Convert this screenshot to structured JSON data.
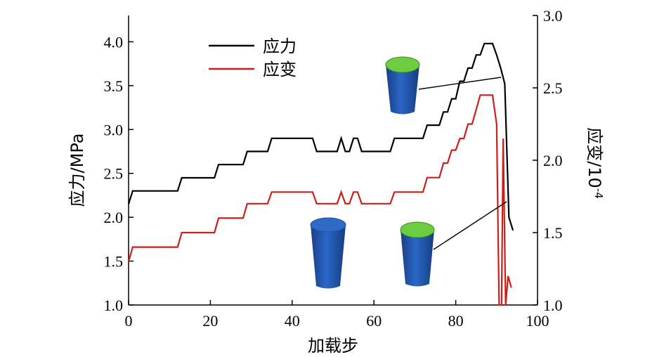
{
  "chart_data": {
    "type": "line",
    "xlabel": "加载步",
    "ylabel_left": "应力/MPa",
    "ylabel_right_base": "应变/10",
    "ylabel_right_exp": "-4",
    "xlim": [
      0,
      100
    ],
    "ylim_left": [
      1.0,
      4.3
    ],
    "ylim_right": [
      1.0,
      3.0
    ],
    "x_ticks": [
      "0",
      "20",
      "40",
      "60",
      "80",
      "100"
    ],
    "y_left_ticks": [
      "1.0",
      "1.5",
      "2.0",
      "2.5",
      "3.0",
      "3.5",
      "4.0"
    ],
    "y_right_ticks": [
      "1.0",
      "1.5",
      "2.0",
      "2.5",
      "3.0"
    ],
    "grid": false,
    "legend": "top-center",
    "series": [
      {
        "name": "应力",
        "axis": "left",
        "color": "#000000",
        "points": [
          [
            0,
            2.15
          ],
          [
            1,
            2.3
          ],
          [
            12,
            2.3
          ],
          [
            13,
            2.45
          ],
          [
            21,
            2.45
          ],
          [
            22,
            2.6
          ],
          [
            28,
            2.6
          ],
          [
            29,
            2.75
          ],
          [
            34,
            2.75
          ],
          [
            35,
            2.9
          ],
          [
            45,
            2.9
          ],
          [
            46,
            2.75
          ],
          [
            51,
            2.75
          ],
          [
            52,
            2.9
          ],
          [
            53,
            2.75
          ],
          [
            54,
            2.75
          ],
          [
            55,
            2.9
          ],
          [
            56,
            2.9
          ],
          [
            57,
            2.75
          ],
          [
            64,
            2.75
          ],
          [
            65,
            2.9
          ],
          [
            72,
            2.9
          ],
          [
            73,
            3.05
          ],
          [
            76,
            3.05
          ],
          [
            77,
            3.2
          ],
          [
            78,
            3.2
          ],
          [
            79,
            3.35
          ],
          [
            80,
            3.35
          ],
          [
            81,
            3.55
          ],
          [
            82,
            3.55
          ],
          [
            83,
            3.7
          ],
          [
            84,
            3.7
          ],
          [
            85,
            3.85
          ],
          [
            86,
            3.85
          ],
          [
            87,
            3.98
          ],
          [
            89,
            3.98
          ],
          [
            90,
            3.85
          ],
          [
            91,
            3.7
          ],
          [
            92,
            3.52
          ],
          [
            93,
            2.0
          ],
          [
            94,
            1.85
          ]
        ]
      },
      {
        "name": "应变",
        "axis": "right",
        "color": "#cc1f1a",
        "points": [
          [
            0,
            1.3
          ],
          [
            1,
            1.4
          ],
          [
            12,
            1.4
          ],
          [
            13,
            1.5
          ],
          [
            21,
            1.5
          ],
          [
            22,
            1.6
          ],
          [
            28,
            1.6
          ],
          [
            29,
            1.7
          ],
          [
            34,
            1.7
          ],
          [
            35,
            1.78
          ],
          [
            45,
            1.78
          ],
          [
            46,
            1.7
          ],
          [
            51,
            1.7
          ],
          [
            52,
            1.78
          ],
          [
            53,
            1.7
          ],
          [
            54,
            1.7
          ],
          [
            55,
            1.78
          ],
          [
            56,
            1.78
          ],
          [
            57,
            1.7
          ],
          [
            64,
            1.7
          ],
          [
            65,
            1.78
          ],
          [
            72,
            1.78
          ],
          [
            73,
            1.88
          ],
          [
            76,
            1.88
          ],
          [
            77,
            1.98
          ],
          [
            78,
            1.98
          ],
          [
            79,
            2.07
          ],
          [
            80,
            2.07
          ],
          [
            81,
            2.15
          ],
          [
            82,
            2.15
          ],
          [
            83,
            2.25
          ],
          [
            84,
            2.25
          ],
          [
            85,
            2.35
          ],
          [
            86,
            2.45
          ],
          [
            89,
            2.45
          ],
          [
            90,
            2.25
          ],
          [
            90.6,
            1.0
          ],
          [
            91.2,
            1.0
          ],
          [
            91.6,
            2.15
          ],
          [
            92.2,
            1.0
          ],
          [
            92.8,
            1.2
          ],
          [
            93.6,
            1.12
          ]
        ]
      }
    ]
  },
  "specimens": [
    {
      "name": "specimen-intact",
      "top_color": "#2b62b8",
      "body_color": "#1f56b3"
    },
    {
      "name": "specimen-peak",
      "top_color": "#6dcc3f",
      "body_color": "#1f56b3"
    },
    {
      "name": "specimen-failure",
      "top_color": "#6dcc3f",
      "body_color": "#1f56b3"
    }
  ]
}
